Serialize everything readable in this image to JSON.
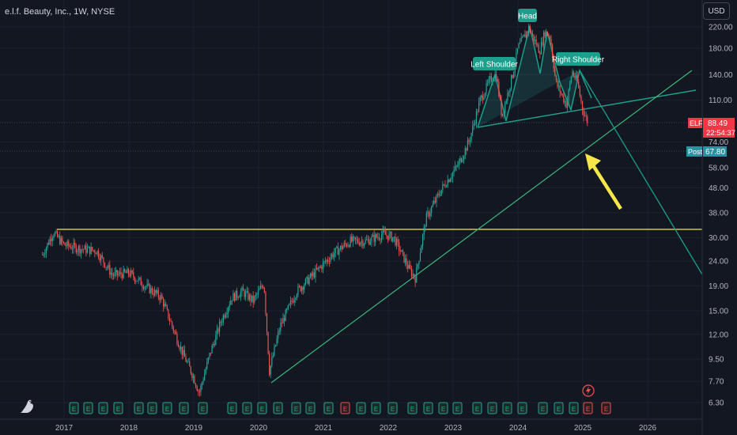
{
  "symbol_title": "e.l.f. Beauty, Inc., 1W, NYSE",
  "currency": "USD",
  "colors": {
    "background": "#131722",
    "grid": "#1e222d",
    "up": "#26a69a",
    "down": "#ef5350",
    "neckline": "#1b9e8a",
    "resistance": "#f5e94a",
    "arrow": "#f7e64a",
    "price_tag": "#f23645",
    "post_tag": "#2962ff"
  },
  "chart_data": {
    "type": "candlestick",
    "y_scale": "log",
    "y_ticks": [
      "220.00",
      "180.00",
      "140.00",
      "110.00",
      "74.00",
      "58.00",
      "48.00",
      "38.00",
      "30.00",
      "24.00",
      "19.00",
      "15.00",
      "12.00",
      "9.50",
      "7.70",
      "6.30"
    ],
    "x_ticks": [
      "2017",
      "2018",
      "2019",
      "2020",
      "2021",
      "2022",
      "2023",
      "2024",
      "2025",
      "2026"
    ],
    "price_path": [
      [
        "2016-09",
        25.5
      ],
      [
        "2016-11",
        31.5
      ],
      [
        "2017-01",
        28
      ],
      [
        "2017-04",
        27
      ],
      [
        "2017-07",
        26.5
      ],
      [
        "2017-10",
        21
      ],
      [
        "2018-01",
        21.5
      ],
      [
        "2018-04",
        19
      ],
      [
        "2018-07",
        17
      ],
      [
        "2018-09",
        13
      ],
      [
        "2018-11",
        10
      ],
      [
        "2019-01",
        8
      ],
      [
        "2019-02",
        6.9
      ],
      [
        "2019-04",
        10
      ],
      [
        "2019-06",
        13.5
      ],
      [
        "2019-08",
        17
      ],
      [
        "2019-10",
        18
      ],
      [
        "2019-12",
        16.5
      ],
      [
        "2020-02",
        19.5
      ],
      [
        "2020-03",
        8.5
      ],
      [
        "2020-05",
        13
      ],
      [
        "2020-08",
        18
      ],
      [
        "2020-11",
        21
      ],
      [
        "2021-03",
        26
      ],
      [
        "2021-06",
        29
      ],
      [
        "2021-09",
        29
      ],
      [
        "2021-12",
        31
      ],
      [
        "2022-02",
        30
      ],
      [
        "2022-05",
        22
      ],
      [
        "2022-06",
        20.5
      ],
      [
        "2022-08",
        36
      ],
      [
        "2022-11",
        48
      ],
      [
        "2023-02",
        60
      ],
      [
        "2023-04",
        75
      ],
      [
        "2023-06",
        110
      ],
      [
        "2023-08",
        135
      ],
      [
        "2023-09",
        140
      ],
      [
        "2023-10",
        95
      ],
      [
        "2023-12",
        140
      ],
      [
        "2024-01",
        180
      ],
      [
        "2024-03",
        218
      ],
      [
        "2024-05",
        175
      ],
      [
        "2024-06",
        210
      ],
      [
        "2024-07",
        200
      ],
      [
        "2024-08",
        130
      ],
      [
        "2024-10",
        105
      ],
      [
        "2024-11",
        145
      ],
      [
        "2024-12",
        130
      ],
      [
        "2025-01",
        100
      ],
      [
        "2025-02",
        88.49
      ]
    ],
    "last_price": {
      "symbol": "ELF",
      "value": "88.49",
      "countdown": "22:54:37"
    },
    "post_market": {
      "label": "Post",
      "value": "67.80"
    },
    "levels": [
      30.5,
      33.0
    ],
    "annotations": [
      "Left Shoulder",
      "Head",
      "Right Shoulder"
    ],
    "event_markers": [
      "E",
      "E",
      "E",
      "E",
      "E",
      "E",
      "E",
      "E",
      "E",
      "E",
      "E",
      "E",
      "E",
      "E",
      "E",
      "E",
      "E",
      "E",
      "E",
      "E",
      "E",
      "E",
      "E",
      "E",
      "E",
      "E",
      "E",
      "E",
      "E",
      "E",
      "E",
      "E",
      "E"
    ],
    "event_marker_kinds": [
      "e",
      "e",
      "e",
      "e",
      "e",
      "e",
      "e",
      "e",
      "e",
      "e",
      "e",
      "e",
      "e",
      "e",
      "e",
      "e",
      "d",
      "e",
      "e",
      "e",
      "e",
      "e",
      "e",
      "e",
      "e",
      "e",
      "e",
      "e",
      "e",
      "e",
      "e",
      "d",
      "d"
    ]
  }
}
